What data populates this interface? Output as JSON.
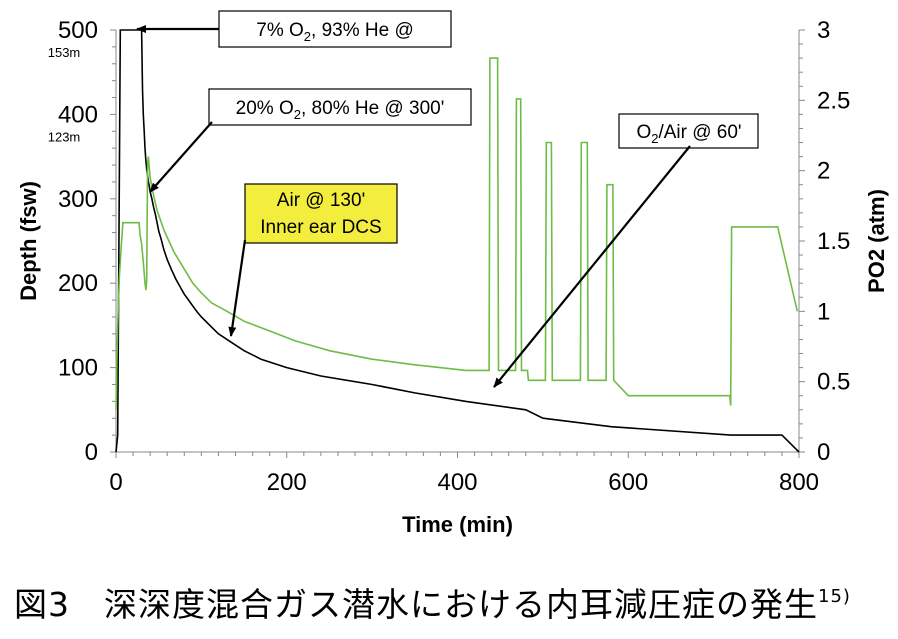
{
  "chart_data": {
    "type": "line",
    "xlabel": "Time (min)",
    "ylabel": "Depth (fsw)",
    "y2label": "PO2 (atm)",
    "xlim": [
      0,
      800
    ],
    "ylim": [
      0,
      500
    ],
    "y2lim": [
      0,
      3
    ],
    "xticks": [
      0,
      200,
      400,
      600,
      800
    ],
    "yticks": [
      0,
      100,
      200,
      300,
      400,
      500
    ],
    "y2ticks": [
      0,
      0.5,
      1,
      1.5,
      2,
      2.5,
      3
    ],
    "ytick_sublabels": [
      {
        "value": 500,
        "label": "153m"
      },
      {
        "value": 400,
        "label": "123m"
      }
    ],
    "grid": false,
    "series": [
      {
        "axis": "left",
        "color": "#000000",
        "x": [
          0,
          2,
          5,
          30,
          30.5,
          31,
          32,
          33,
          34,
          35,
          36,
          37,
          38,
          39,
          40,
          42,
          44,
          46,
          48,
          50,
          53,
          56,
          60,
          65,
          70,
          75,
          80,
          85,
          90,
          95,
          100,
          110,
          120,
          135,
          150,
          170,
          200,
          240,
          300,
          350,
          410,
          480,
          500,
          580,
          720,
          770,
          780,
          785,
          790,
          795,
          800
        ],
        "y": [
          0,
          20,
          500,
          500,
          470,
          430,
          400,
          380,
          360,
          345,
          335,
          328,
          320,
          315,
          308,
          300,
          290,
          282,
          272,
          262,
          252,
          240,
          228,
          216,
          205,
          196,
          187,
          180,
          173,
          166,
          160,
          150,
          140,
          130,
          120,
          110,
          100,
          90,
          80,
          70,
          60,
          50,
          40,
          30,
          20,
          20,
          20,
          15,
          10,
          5,
          0
        ]
      },
      {
        "axis": "right",
        "color": "#6dbd45",
        "x": [
          0,
          1,
          2,
          4,
          6,
          8,
          8,
          27,
          28,
          30,
          32,
          34,
          35,
          36,
          37,
          38,
          39,
          40,
          42,
          45,
          48,
          52,
          56,
          62,
          68,
          75,
          82,
          90,
          100,
          112,
          130,
          150,
          180,
          210,
          250,
          300,
          350,
          410,
          412,
          437,
          438,
          447,
          448,
          468,
          469,
          474,
          475,
          482,
          483,
          503,
          504,
          510,
          511,
          526,
          527,
          544,
          545,
          552,
          553,
          574,
          575,
          582,
          583,
          600,
          700,
          719,
          720,
          721,
          775,
          798
        ],
        "y": [
          0.3,
          0.65,
          0.9,
          1.25,
          1.45,
          1.62,
          1.63,
          1.63,
          1.55,
          1.48,
          1.35,
          1.2,
          1.15,
          1.22,
          2.05,
          2.1,
          2.02,
          1.95,
          1.88,
          1.8,
          1.72,
          1.65,
          1.58,
          1.5,
          1.42,
          1.35,
          1.28,
          1.2,
          1.13,
          1.06,
          1.0,
          0.93,
          0.86,
          0.79,
          0.72,
          0.66,
          0.62,
          0.58,
          0.58,
          0.58,
          2.8,
          2.8,
          0.58,
          0.58,
          2.51,
          2.51,
          0.58,
          0.58,
          0.51,
          0.51,
          2.2,
          2.2,
          0.51,
          0.51,
          0.51,
          0.51,
          2.2,
          2.2,
          0.51,
          0.51,
          1.9,
          1.9,
          0.51,
          0.4,
          0.4,
          0.4,
          0.33,
          1.6,
          1.6,
          1.0
        ]
      }
    ],
    "annotations": [
      {
        "label": "7% O2, 93% He @",
        "highlight": false
      },
      {
        "label": "20% O2, 80% He @ 300'",
        "highlight": false
      },
      {
        "label": "Air @ 130'\nInner ear DCS",
        "highlight": true
      },
      {
        "label": "O2/Air @ 60'",
        "highlight": false
      }
    ]
  },
  "caption": {
    "text": "図3　深深度混合ガス潜水における内耳減圧症の発生",
    "superscript": "15)"
  }
}
